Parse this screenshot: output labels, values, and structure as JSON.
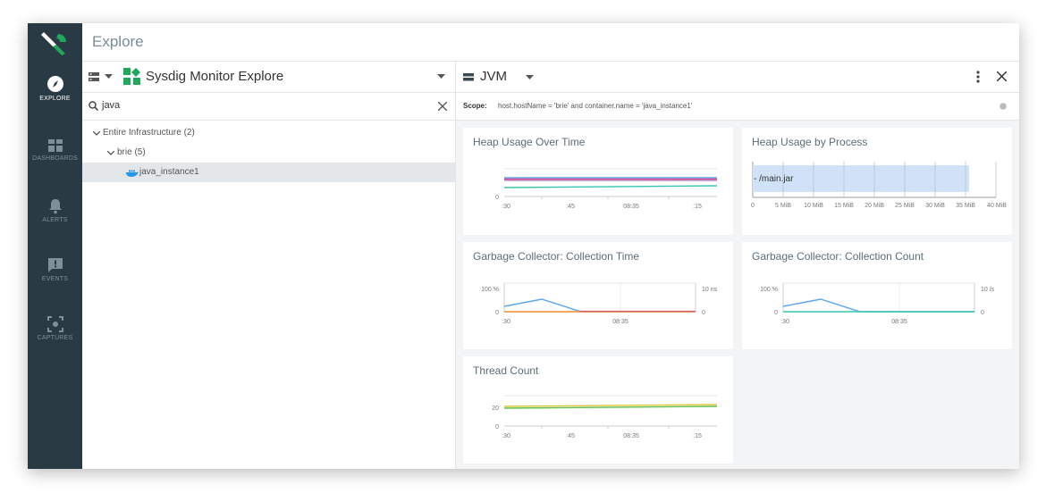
{
  "nav": {
    "items": [
      {
        "label": "EXPLORE"
      },
      {
        "label": "DASHBOARDS"
      },
      {
        "label": "ALERTS"
      },
      {
        "label": "EVENTS"
      },
      {
        "label": "CAPTURES"
      }
    ]
  },
  "topbar": {
    "title": "Explore"
  },
  "explore": {
    "source": "Sysdig Monitor Explore",
    "search_value": "java",
    "tree": [
      {
        "label": "Entire Infrastructure (2)"
      },
      {
        "label": "brie (5)"
      },
      {
        "label": "java_instance1"
      }
    ]
  },
  "view": {
    "name": "JVM",
    "scope_label": "Scope:",
    "scope_value": "host.hostName = 'brie' and container.name = 'java_instance1'"
  },
  "panels": [
    {
      "title": "Heap Usage Over Time",
      "ticks_x": [
        ":30",
        ":45",
        "08:35",
        ":15"
      ],
      "ticks_y": [
        "0"
      ]
    },
    {
      "title": "Heap Usage by Process",
      "bar_label": "- /main.jar",
      "ticks_x": [
        "0",
        "5 MiB",
        "10 MiB",
        "15 MiB",
        "20 MiB",
        "25 MiB",
        "30 MiB",
        "35 MiB",
        "40 MiB"
      ]
    },
    {
      "title": "Garbage Collector: Collection Time",
      "ticks_x": [
        ":30",
        "08:35"
      ],
      "ticks_y": [
        "100 %",
        "0"
      ],
      "ticks_y2": [
        "10 ns",
        "0"
      ]
    },
    {
      "title": "Garbage Collector: Collection Count",
      "ticks_x": [
        ":30",
        "08:35"
      ],
      "ticks_y": [
        "100 %",
        "0"
      ],
      "ticks_y2": [
        "10 /s",
        "0"
      ]
    },
    {
      "title": "Thread Count",
      "ticks_x": [
        ":30",
        ":45",
        "08:35",
        ":15"
      ],
      "ticks_y": [
        "20",
        "0"
      ]
    }
  ],
  "colors": {
    "nav_bg": "#293a45",
    "accent_green": "#1fa85a",
    "series_blue": "#5aa6ea",
    "series_pink": "#d64a8c",
    "series_teal": "#37c5b0",
    "series_orange": "#f08c32",
    "series_yellow": "#d8c93a",
    "series_green": "#5fbf4a"
  }
}
